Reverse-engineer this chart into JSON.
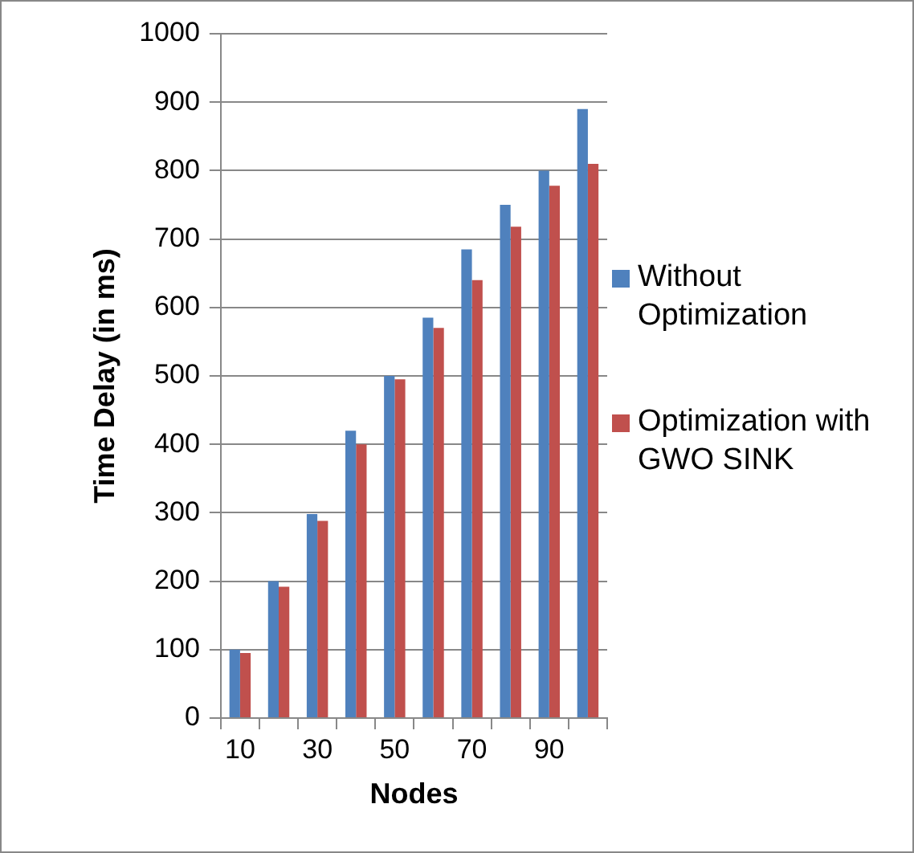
{
  "chart_data": {
    "type": "bar",
    "xlabel": "Nodes",
    "ylabel": "Time Delay (in ms)",
    "categories": [
      "10",
      null,
      "30",
      null,
      "50",
      null,
      "70",
      null,
      "90",
      null
    ],
    "series": [
      {
        "name": "Without Optimization",
        "color": "#4f81bd",
        "values": [
          100,
          200,
          298,
          420,
          500,
          585,
          685,
          750,
          800,
          890
        ]
      },
      {
        "name": "Optimization with GWO SINK",
        "color": "#c0504d",
        "values": [
          95,
          192,
          288,
          400,
          495,
          570,
          640,
          718,
          778,
          810
        ]
      }
    ],
    "ylim": [
      0,
      1000
    ],
    "yticks": [
      0,
      100,
      200,
      300,
      400,
      500,
      600,
      700,
      800,
      900,
      1000
    ],
    "grid": "y",
    "legend": "right"
  }
}
